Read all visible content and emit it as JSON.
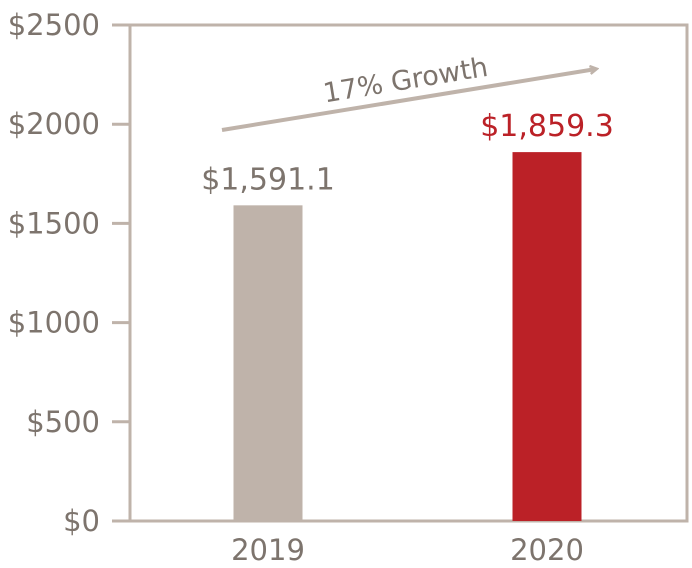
{
  "chart_data": {
    "type": "bar",
    "categories": [
      "2019",
      "2020"
    ],
    "values": [
      1591.1,
      1859.3
    ],
    "value_labels": [
      "$1,591.1",
      "$1,859.3"
    ],
    "bar_colors": [
      "#bfb3aa",
      "#bb2127"
    ],
    "label_colors": [
      "#7d746d",
      "#bb2127"
    ],
    "y_ticks": [
      0,
      500,
      1000,
      1500,
      2000,
      2500
    ],
    "y_tick_labels": [
      "$0",
      "$500",
      "$1000",
      "$1500",
      "$2000",
      "$2500"
    ],
    "ylim": [
      0,
      2500
    ],
    "grid": false,
    "annotation": "17% Growth",
    "frame_color": "#bfb3aa",
    "text_color": "#7d746d"
  }
}
